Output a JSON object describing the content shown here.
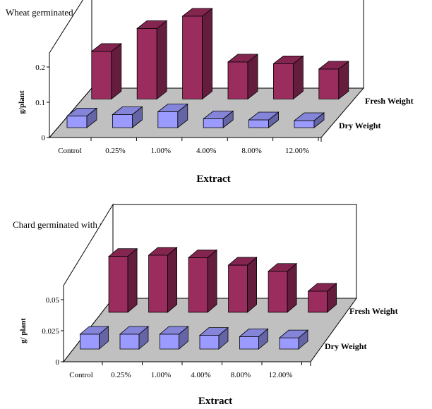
{
  "chart_data": [
    {
      "type": "bar",
      "title": "Wheat germinated with chard (W+C)",
      "xlabel": "Extract",
      "ylabel": "g/plant",
      "categories": [
        "Control",
        "0.25%",
        "1.00%",
        "4.00%",
        "8.00%",
        "12.00%"
      ],
      "yticks": [
        "0",
        "0.1",
        "0.2"
      ],
      "ylim": [
        0,
        0.2
      ],
      "series": [
        {
          "name": "Fresh Weight",
          "values": [
            0.135,
            0.2,
            0.235,
            0.105,
            0.1,
            0.085
          ]
        },
        {
          "name": "Dry Weight",
          "values": [
            0.033,
            0.037,
            0.045,
            0.025,
            0.022,
            0.02
          ]
        }
      ],
      "colors": {
        "fresh": "#9b2c5e",
        "dry": "#9b9bff",
        "floor": "#c0c0c0"
      }
    },
    {
      "type": "bar",
      "title": "Chard germinated with wheat (C+W)",
      "xlabel": "Extract",
      "ylabel": "g/ plant",
      "categories": [
        "Control",
        "0.25%",
        "1.00%",
        "4.00%",
        "8.00%",
        "12.00%"
      ],
      "yticks": [
        "0",
        "0.025",
        "0.05"
      ],
      "ylim": [
        0,
        0.05
      ],
      "series": [
        {
          "name": "Fresh Weight",
          "values": [
            0.045,
            0.046,
            0.044,
            0.038,
            0.033,
            0.017
          ]
        },
        {
          "name": "Dry Weight",
          "values": [
            0.012,
            0.012,
            0.012,
            0.011,
            0.01,
            0.009
          ]
        }
      ],
      "colors": {
        "fresh": "#9b2c5e",
        "dry": "#9b9bff",
        "floor": "#c0c0c0"
      }
    }
  ]
}
